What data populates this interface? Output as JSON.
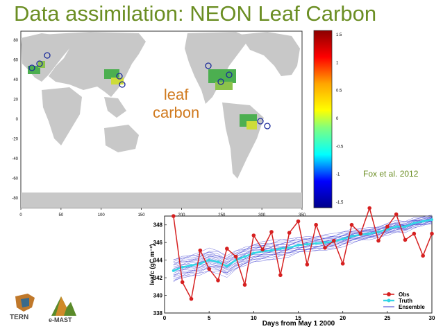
{
  "slide": {
    "title": "Data assimilation: NEON Leaf Carbon",
    "map_label_line1": "leaf",
    "map_label_line2": "carbon",
    "citation": "Fox et al. 2012",
    "logo_left": "TERN",
    "logo_right": "e-MAST"
  },
  "map": {
    "x_ticks": [
      "0",
      "50",
      "100",
      "150",
      "200",
      "250",
      "300",
      "350"
    ],
    "y_ticks": [
      "80",
      "60",
      "40",
      "20",
      "0",
      "-20",
      "-40",
      "-60",
      "-80"
    ],
    "colorbar_ticks": [
      "1.5",
      "1",
      "0.5",
      "0",
      "-0.5",
      "-1",
      "-1.5"
    ],
    "colors": {
      "land": "#c8c8c8",
      "ocean": "#ffffff",
      "high": "#b00000",
      "mid": "#4caf50",
      "low": "#1a2a9a"
    }
  },
  "chart_data": {
    "type": "line",
    "xlabel": "Days from May 1 2000",
    "ylabel": "leafc (gC m⁻²)",
    "xlim": [
      0,
      30
    ],
    "ylim": [
      338,
      349
    ],
    "x_ticks": [
      "0",
      "5",
      "10",
      "15",
      "20",
      "25",
      "30"
    ],
    "y_ticks": [
      "338",
      "340",
      "342",
      "344",
      "346",
      "348"
    ],
    "legend_position": "bottom-right",
    "colors": {
      "obs": "#d62020",
      "truth": "#33d6e6",
      "ensemble": "#3a3ad0"
    },
    "series": [
      {
        "name": "Obs",
        "x": [
          1,
          2,
          3,
          4,
          5,
          6,
          7,
          8,
          9,
          10,
          11,
          12,
          13,
          14,
          15,
          16,
          17,
          18,
          19,
          20,
          21,
          22,
          23,
          24,
          25,
          26,
          27,
          28,
          29,
          30
        ],
        "values": [
          349.0,
          341.5,
          339.6,
          345.1,
          343.0,
          341.7,
          345.3,
          344.4,
          341.2,
          346.8,
          345.2,
          347.2,
          342.3,
          347.1,
          348.4,
          343.5,
          348.0,
          345.4,
          346.2,
          343.6,
          348.0,
          347.0,
          349.9,
          346.2,
          347.8,
          349.2,
          346.3,
          347.0,
          344.5,
          347.0
        ]
      },
      {
        "name": "Truth",
        "x": [
          1,
          2,
          3,
          4,
          5,
          6,
          7,
          8,
          9,
          10,
          11,
          12,
          13,
          14,
          15,
          16,
          17,
          18,
          19,
          20,
          21,
          22,
          23,
          24,
          25,
          26,
          27,
          28,
          29,
          30
        ],
        "values": [
          342.8,
          343.2,
          343.4,
          343.6,
          344.0,
          343.8,
          343.3,
          344.0,
          344.4,
          344.8,
          345.0,
          345.1,
          345.3,
          345.4,
          345.7,
          345.8,
          345.9,
          346.0,
          346.1,
          346.4,
          346.7,
          346.9,
          347.0,
          347.2,
          347.5,
          347.8,
          347.8,
          348.2,
          348.4,
          348.6
        ]
      },
      {
        "name": "Ensemble",
        "x": [],
        "values": []
      }
    ]
  }
}
